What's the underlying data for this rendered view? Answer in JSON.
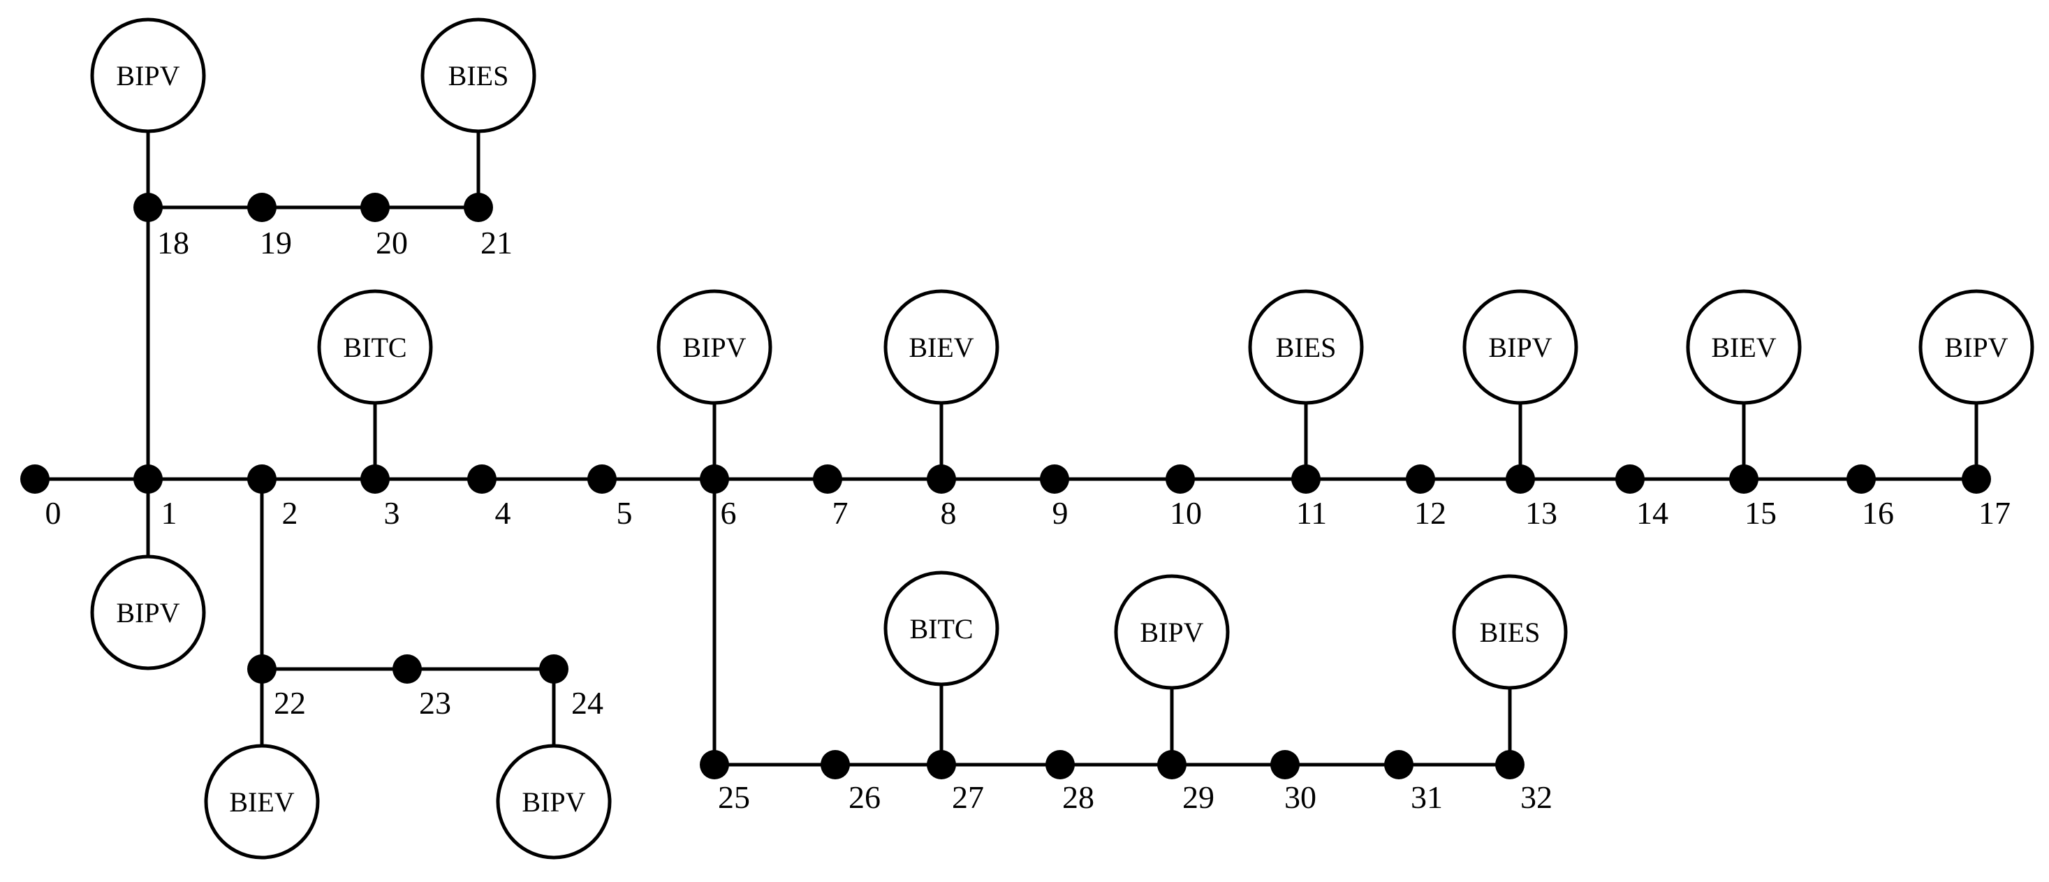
{
  "buses": [
    {
      "id": 0,
      "label": "0"
    },
    {
      "id": 1,
      "label": "1"
    },
    {
      "id": 2,
      "label": "2"
    },
    {
      "id": 3,
      "label": "3"
    },
    {
      "id": 4,
      "label": "4"
    },
    {
      "id": 5,
      "label": "5"
    },
    {
      "id": 6,
      "label": "6"
    },
    {
      "id": 7,
      "label": "7"
    },
    {
      "id": 8,
      "label": "8"
    },
    {
      "id": 9,
      "label": "9"
    },
    {
      "id": 10,
      "label": "10"
    },
    {
      "id": 11,
      "label": "11"
    },
    {
      "id": 12,
      "label": "12"
    },
    {
      "id": 13,
      "label": "13"
    },
    {
      "id": 14,
      "label": "14"
    },
    {
      "id": 15,
      "label": "15"
    },
    {
      "id": 16,
      "label": "16"
    },
    {
      "id": 17,
      "label": "17"
    },
    {
      "id": 18,
      "label": "18"
    },
    {
      "id": 19,
      "label": "19"
    },
    {
      "id": 20,
      "label": "20"
    },
    {
      "id": 21,
      "label": "21"
    },
    {
      "id": 22,
      "label": "22"
    },
    {
      "id": 23,
      "label": "23"
    },
    {
      "id": 24,
      "label": "24"
    },
    {
      "id": 25,
      "label": "25"
    },
    {
      "id": 26,
      "label": "26"
    },
    {
      "id": 27,
      "label": "27"
    },
    {
      "id": 28,
      "label": "28"
    },
    {
      "id": 29,
      "label": "29"
    },
    {
      "id": 30,
      "label": "30"
    },
    {
      "id": 31,
      "label": "31"
    },
    {
      "id": 32,
      "label": "32"
    }
  ],
  "lines": [
    [
      0,
      1
    ],
    [
      1,
      2
    ],
    [
      2,
      3
    ],
    [
      3,
      4
    ],
    [
      4,
      5
    ],
    [
      5,
      6
    ],
    [
      6,
      7
    ],
    [
      7,
      8
    ],
    [
      8,
      9
    ],
    [
      9,
      10
    ],
    [
      10,
      11
    ],
    [
      11,
      12
    ],
    [
      12,
      13
    ],
    [
      13,
      14
    ],
    [
      14,
      15
    ],
    [
      15,
      16
    ],
    [
      16,
      17
    ],
    [
      1,
      18
    ],
    [
      18,
      19
    ],
    [
      19,
      20
    ],
    [
      20,
      21
    ],
    [
      2,
      22
    ],
    [
      22,
      23
    ],
    [
      23,
      24
    ],
    [
      6,
      25
    ],
    [
      25,
      26
    ],
    [
      26,
      27
    ],
    [
      27,
      28
    ],
    [
      28,
      29
    ],
    [
      29,
      30
    ],
    [
      30,
      31
    ],
    [
      31,
      32
    ]
  ],
  "devices": [
    {
      "bus": 18,
      "label": "BIPV"
    },
    {
      "bus": 21,
      "label": "BIES"
    },
    {
      "bus": 3,
      "label": "BITC"
    },
    {
      "bus": 6,
      "label": "BIPV"
    },
    {
      "bus": 8,
      "label": "BIEV"
    },
    {
      "bus": 11,
      "label": "BIES"
    },
    {
      "bus": 13,
      "label": "BIPV"
    },
    {
      "bus": 15,
      "label": "BIEV"
    },
    {
      "bus": 17,
      "label": "BIPV"
    },
    {
      "bus": 1,
      "label": "BIPV"
    },
    {
      "bus": 22,
      "label": "BIEV"
    },
    {
      "bus": 24,
      "label": "BIPV"
    },
    {
      "bus": 27,
      "label": "BITC"
    },
    {
      "bus": 29,
      "label": "BIPV"
    },
    {
      "bus": 32,
      "label": "BIES"
    }
  ]
}
